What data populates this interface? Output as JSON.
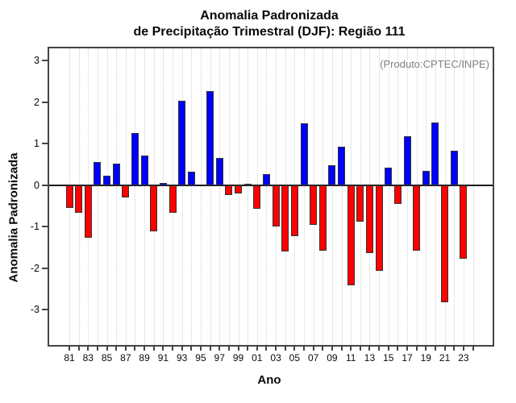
{
  "chart_data": {
    "type": "bar",
    "title": "Anomalia Padronizada de Precipitação Trimestral (DJF): Região 111",
    "title_line1": "Anomalia Padronizada",
    "title_line2": "de Precipitação Trimestral (DJF): Região 111",
    "annotation": "(Produto:CPTEC/INPE)",
    "xlabel": "Ano",
    "ylabel": "Anomalia Padronizada",
    "years": [
      1981,
      1982,
      1983,
      1984,
      1985,
      1986,
      1987,
      1988,
      1989,
      1990,
      1991,
      1992,
      1993,
      1994,
      1995,
      1996,
      1997,
      1998,
      1999,
      2000,
      2001,
      2002,
      2003,
      2004,
      2005,
      2006,
      2007,
      2008,
      2009,
      2010,
      2011,
      2012,
      2013,
      2014,
      2015,
      2016,
      2017,
      2018,
      2019,
      2020,
      2021,
      2022,
      2023
    ],
    "categories": [
      "81",
      "82",
      "83",
      "84",
      "85",
      "86",
      "87",
      "88",
      "89",
      "90",
      "91",
      "92",
      "93",
      "94",
      "95",
      "96",
      "97",
      "98",
      "99",
      "00",
      "01",
      "02",
      "03",
      "04",
      "05",
      "06",
      "07",
      "08",
      "09",
      "10",
      "11",
      "12",
      "13",
      "14",
      "15",
      "16",
      "17",
      "18",
      "19",
      "20",
      "21",
      "22",
      "23"
    ],
    "values": [
      -0.55,
      -0.67,
      -1.26,
      0.57,
      0.23,
      0.52,
      -0.3,
      1.26,
      0.71,
      -1.12,
      0.06,
      -0.66,
      2.03,
      0.33,
      0.0,
      2.27,
      0.65,
      -0.24,
      -0.19,
      0.04,
      -0.57,
      0.27,
      -1.0,
      -1.6,
      -1.23,
      1.5,
      -0.96,
      -1.58,
      0.48,
      0.93,
      -2.42,
      -0.88,
      -1.64,
      -2.07,
      0.43,
      -0.45,
      1.18,
      -1.58,
      0.34,
      1.51,
      -2.83,
      0.83,
      -1.78
    ],
    "x_tick_labels_shown": [
      "81",
      "83",
      "85",
      "87",
      "89",
      "91",
      "93",
      "95",
      "97",
      "99",
      "01",
      "03",
      "05",
      "07",
      "09",
      "11",
      "13",
      "15",
      "17",
      "19",
      "21",
      "23"
    ],
    "yticks": [
      3,
      2,
      1,
      0,
      -1,
      -2,
      -3
    ],
    "ylim": [
      -3.85,
      3.3
    ],
    "grid": {
      "vertical": "dotted",
      "horizontal": false
    },
    "zero_line": true,
    "legend": null,
    "colors": {
      "positive_bar": "#0000FF",
      "negative_bar": "#FF0000",
      "bar_border": "#333333",
      "annotation_text": "#808080",
      "grid_line": "#d2d2d2",
      "axis": "#444444"
    }
  }
}
